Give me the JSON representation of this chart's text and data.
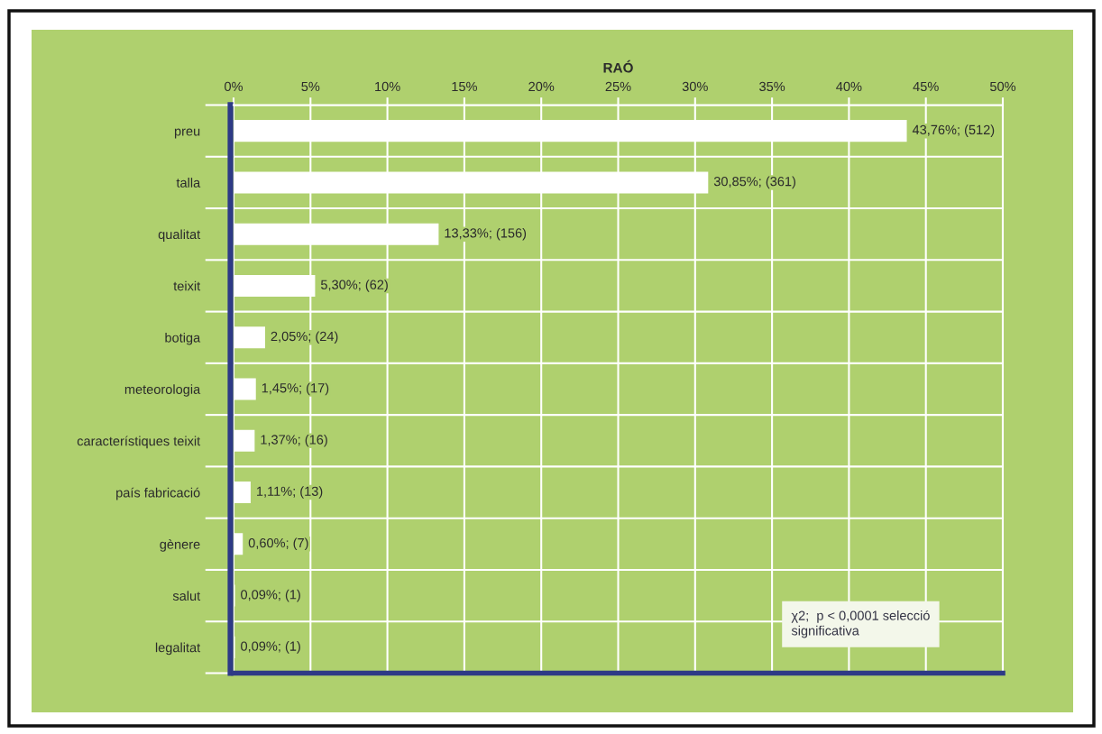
{
  "chart_data": {
    "type": "bar",
    "orientation": "horizontal",
    "title": "RAÓ",
    "categories": [
      "preu",
      "talla",
      "qualitat",
      "teixit",
      "botiga",
      "meteorologia",
      "característiques teixit",
      "país fabricació",
      "gènere",
      "salut",
      "legalitat"
    ],
    "values": [
      43.76,
      30.85,
      13.33,
      5.3,
      2.05,
      1.45,
      1.37,
      1.11,
      0.6,
      0.09,
      0.09
    ],
    "value_labels": [
      "43,76%; (512)",
      "30,85%; (361)",
      "13,33%; (156)",
      "5,30%; (62)",
      "2,05%; (24)",
      "1,45%; (17)",
      "1,37%; (16)",
      "1,11%; (13)",
      "0,60%; (7)",
      "0,09%; (1)",
      "0,09%; (1)"
    ],
    "color": "#ffffff",
    "xlim": [
      0,
      50
    ],
    "xticks": [
      {
        "value": 0,
        "label": "0%"
      },
      {
        "value": 5,
        "label": "5%"
      },
      {
        "value": 10,
        "label": "10%"
      },
      {
        "value": 15,
        "label": "15%"
      },
      {
        "value": 20,
        "label": "20%"
      },
      {
        "value": 25,
        "label": "25%"
      },
      {
        "value": 30,
        "label": "30%"
      },
      {
        "value": 35,
        "label": "35%"
      },
      {
        "value": 40,
        "label": "40%"
      },
      {
        "value": 45,
        "label": "45%"
      },
      {
        "value": 50,
        "label": "50%"
      }
    ],
    "grid": true,
    "annotations": [
      "χ2;  p < 0,0001 selecció\nsignificativa"
    ]
  }
}
